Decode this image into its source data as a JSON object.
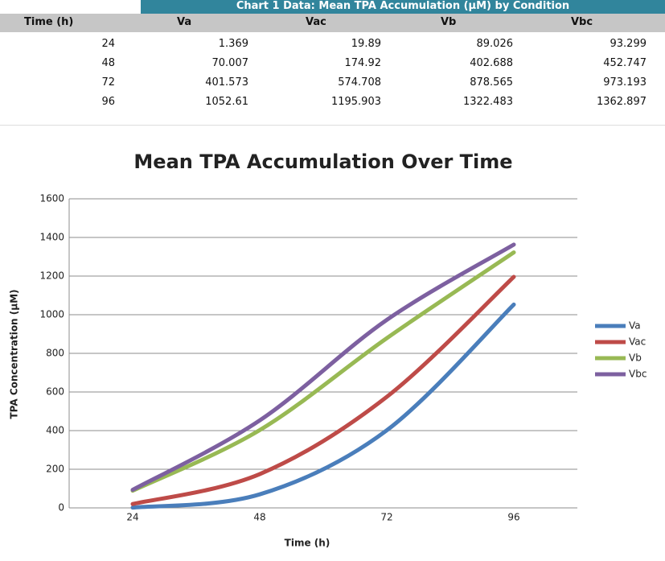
{
  "table": {
    "title": "Chart 1 Data: Mean TPA Accumulation (µM) by Condition",
    "headers": [
      "Time (h)",
      "Va",
      "Vac",
      "Vb",
      "Vbc"
    ],
    "rows": [
      [
        24,
        1.369,
        19.89,
        89.026,
        93.299
      ],
      [
        48,
        70.007,
        174.92,
        402.688,
        452.747
      ],
      [
        72,
        401.573,
        574.708,
        878.565,
        973.193
      ],
      [
        96,
        1052.61,
        1195.903,
        1322.483,
        1362.897
      ]
    ]
  },
  "chart_data": {
    "type": "line",
    "title": "Mean TPA Accumulation Over Time",
    "x_label": "Time (h)",
    "y_label": "TPA Concentration (µM)",
    "categories": [
      "24",
      "48",
      "72",
      "96"
    ],
    "series": [
      {
        "name": "Va",
        "color": "#4a7ebb",
        "values": [
          1.369,
          70.007,
          401.573,
          1052.61
        ]
      },
      {
        "name": "Vac",
        "color": "#be4b48",
        "values": [
          19.89,
          174.92,
          574.708,
          1195.903
        ]
      },
      {
        "name": "Vb",
        "color": "#98b954",
        "values": [
          89.026,
          402.688,
          878.565,
          1322.483
        ]
      },
      {
        "name": "Vbc",
        "color": "#7d60a0",
        "values": [
          93.299,
          452.747,
          973.193,
          1362.897
        ]
      }
    ],
    "ylim": [
      0,
      1600
    ],
    "yticks": [
      0,
      200,
      400,
      600,
      800,
      1000,
      1200,
      1400,
      1600
    ],
    "grid": true,
    "smooth": true,
    "legend": "right"
  }
}
